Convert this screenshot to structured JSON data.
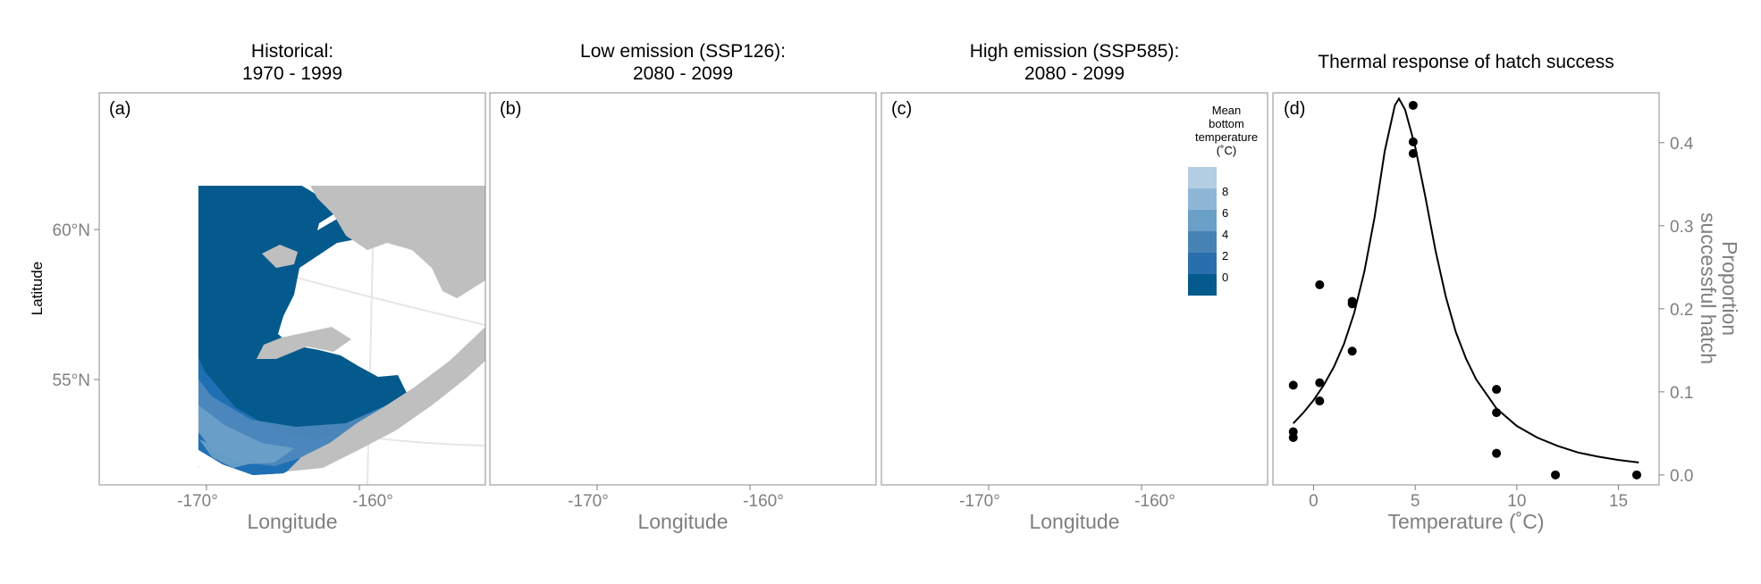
{
  "figure": {
    "map_panels": [
      {
        "tag": "(a)",
        "title_line1": "Historical:",
        "title_line2": "1970 - 1999",
        "shade_levels": [
          "#045a8d",
          "#2171b5",
          "#4e88bd",
          "#6a9fc8"
        ]
      },
      {
        "tag": "(b)",
        "title_line1": "Low emission (SSP126):",
        "title_line2": "2080 - 2099",
        "shade_levels": [
          "#045a8d",
          "#2b74b0",
          "#5b93c3",
          "#7ea9d1"
        ]
      },
      {
        "tag": "(c)",
        "title_line1": "High emission (SSP585):",
        "title_line2": "2080 - 2099",
        "shade_levels": [
          "#0b5b94",
          "#3f83bd",
          "#6b9dc9",
          "#9cc0dc"
        ]
      }
    ],
    "map_x_ticks": [
      "-170°",
      "-160°"
    ],
    "map_y_ticks": [
      "60°N",
      "55°N"
    ],
    "map_xlabel": "Longitude",
    "map_ylabel": "Latitude",
    "legend": {
      "title_lines": [
        "Mean",
        "bottom",
        "temperature",
        "(˚C)"
      ],
      "labels": [
        "8",
        "6",
        "4",
        "2",
        "0"
      ],
      "colors": [
        "#b3cde3",
        "#8fb6d6",
        "#6a9fc8",
        "#4682b4",
        "#2a6fad",
        "#045a8d"
      ]
    },
    "land_color": "#bfbfbf",
    "line_color": "#000000",
    "point_color": "#000000"
  },
  "chart_data": [
    {
      "type": "map",
      "panel": "(a)",
      "title": "Historical: 1970 - 1999",
      "xlabel": "Longitude",
      "ylabel": "Latitude"
    },
    {
      "type": "map",
      "panel": "(b)",
      "title": "Low emission (SSP126): 2080 - 2099",
      "xlabel": "Longitude"
    },
    {
      "type": "map",
      "panel": "(c)",
      "title": "High emission (SSP585): 2080 - 2099",
      "xlabel": "Longitude",
      "legend_title": "Mean bottom temperature (˚C)",
      "legend_ticks": [
        0,
        2,
        4,
        6,
        8
      ]
    },
    {
      "type": "scatter",
      "panel": "(d)",
      "title": "Thermal response of hatch success",
      "xlabel": "Temperature (˚C)",
      "ylabel": "Proportion successful hatch",
      "xlim": [
        -2,
        17
      ],
      "ylim": [
        -0.012,
        0.46
      ],
      "x_ticks": [
        0,
        5,
        10,
        15
      ],
      "y_ticks": [
        0.0,
        0.1,
        0.2,
        0.3,
        0.4
      ],
      "y_tick_labels": [
        "0.0",
        "0.1",
        "0.2",
        "0.3",
        "0.4"
      ],
      "points": [
        [
          -1.0,
          0.108
        ],
        [
          -1.0,
          0.052
        ],
        [
          -1.0,
          0.045
        ],
        [
          0.3,
          0.229
        ],
        [
          0.3,
          0.111
        ],
        [
          0.3,
          0.089
        ],
        [
          1.9,
          0.209
        ],
        [
          1.9,
          0.206
        ],
        [
          1.9,
          0.149
        ],
        [
          4.9,
          0.445
        ],
        [
          4.9,
          0.401
        ],
        [
          4.9,
          0.387
        ],
        [
          9.0,
          0.103
        ],
        [
          9.0,
          0.075
        ],
        [
          9.0,
          0.026
        ],
        [
          11.9,
          0.0
        ],
        [
          15.9,
          0.0
        ]
      ],
      "fitted_curve": [
        [
          -1.0,
          0.062
        ],
        [
          -0.5,
          0.075
        ],
        [
          0.0,
          0.09
        ],
        [
          0.5,
          0.108
        ],
        [
          1.0,
          0.13
        ],
        [
          1.5,
          0.158
        ],
        [
          2.0,
          0.195
        ],
        [
          2.5,
          0.245
        ],
        [
          3.0,
          0.31
        ],
        [
          3.5,
          0.39
        ],
        [
          4.0,
          0.445
        ],
        [
          4.2,
          0.453
        ],
        [
          4.5,
          0.44
        ],
        [
          5.0,
          0.395
        ],
        [
          5.5,
          0.335
        ],
        [
          6.0,
          0.27
        ],
        [
          6.5,
          0.215
        ],
        [
          7.0,
          0.172
        ],
        [
          7.5,
          0.14
        ],
        [
          8.0,
          0.115
        ],
        [
          9.0,
          0.08
        ],
        [
          10.0,
          0.059
        ],
        [
          11.0,
          0.045
        ],
        [
          12.0,
          0.035
        ],
        [
          13.0,
          0.027
        ],
        [
          14.0,
          0.022
        ],
        [
          15.0,
          0.018
        ],
        [
          16.0,
          0.015
        ]
      ]
    }
  ]
}
